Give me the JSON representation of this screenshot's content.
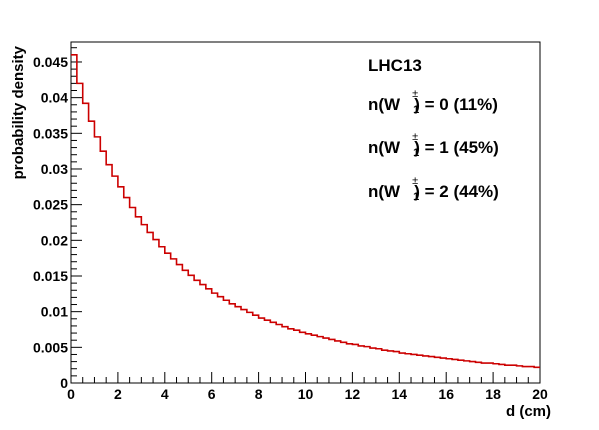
{
  "chart_data": {
    "type": "histogram",
    "xlabel": "d (cm)",
    "ylabel": "probability density",
    "xlim": [
      0,
      20
    ],
    "ylim": [
      0,
      0.0478
    ],
    "x_ticks": [
      0,
      2,
      4,
      6,
      8,
      10,
      12,
      14,
      16,
      18,
      20
    ],
    "x_tick_labels": [
      "0",
      "2",
      "4",
      "6",
      "8",
      "10",
      "12",
      "14",
      "16",
      "18",
      "20"
    ],
    "y_ticks": [
      0,
      0.005,
      0.01,
      0.015,
      0.02,
      0.025,
      0.03,
      0.035,
      0.04,
      0.045
    ],
    "y_tick_labels": [
      "0",
      "0.005",
      "0.01",
      "0.015",
      "0.02",
      "0.025",
      "0.03",
      "0.035",
      "0.04",
      "0.045"
    ],
    "bin_width": 0.25,
    "line_color": "#cc0000",
    "series": [
      {
        "bin_start": 0,
        "values": [
          0.046,
          0.042,
          0.0392,
          0.0367,
          0.0345,
          0.0325,
          0.0306,
          0.029,
          0.0275,
          0.026,
          0.0246,
          0.0233,
          0.0222,
          0.0211,
          0.0201,
          0.0191,
          0.0182,
          0.0174,
          0.0166,
          0.0158,
          0.0151,
          0.0144,
          0.0138,
          0.0132,
          0.0126,
          0.0121,
          0.0116,
          0.0111,
          0.0107,
          0.0103,
          0.0099,
          0.0095,
          0.0091,
          0.0088,
          0.0085,
          0.0082,
          0.0079,
          0.0076,
          0.0074,
          0.0071,
          0.0069,
          0.0067,
          0.0065,
          0.0063,
          0.0061,
          0.0059,
          0.0057,
          0.0055,
          0.0054,
          0.0052,
          0.0051,
          0.0049,
          0.0048,
          0.0046,
          0.0045,
          0.0044,
          0.0042,
          0.0041,
          0.004,
          0.0039,
          0.0038,
          0.0037,
          0.0036,
          0.0035,
          0.0034,
          0.0033,
          0.0032,
          0.0031,
          0.003,
          0.0029,
          0.0028,
          0.0028,
          0.0027,
          0.0026,
          0.0025,
          0.0025,
          0.0024,
          0.0023,
          0.0023,
          0.0022
        ]
      }
    ],
    "annotations": {
      "collider": "LHC13",
      "rows": [
        {
          "prefix": "n(W",
          "suffix": ") = 0 (11%)"
        },
        {
          "prefix": "n(W",
          "suffix": ") = 1 (45%)"
        },
        {
          "prefix": "n(W",
          "suffix": ") = 2 (44%)"
        }
      ],
      "superscript": "±",
      "subscript": "1"
    }
  }
}
